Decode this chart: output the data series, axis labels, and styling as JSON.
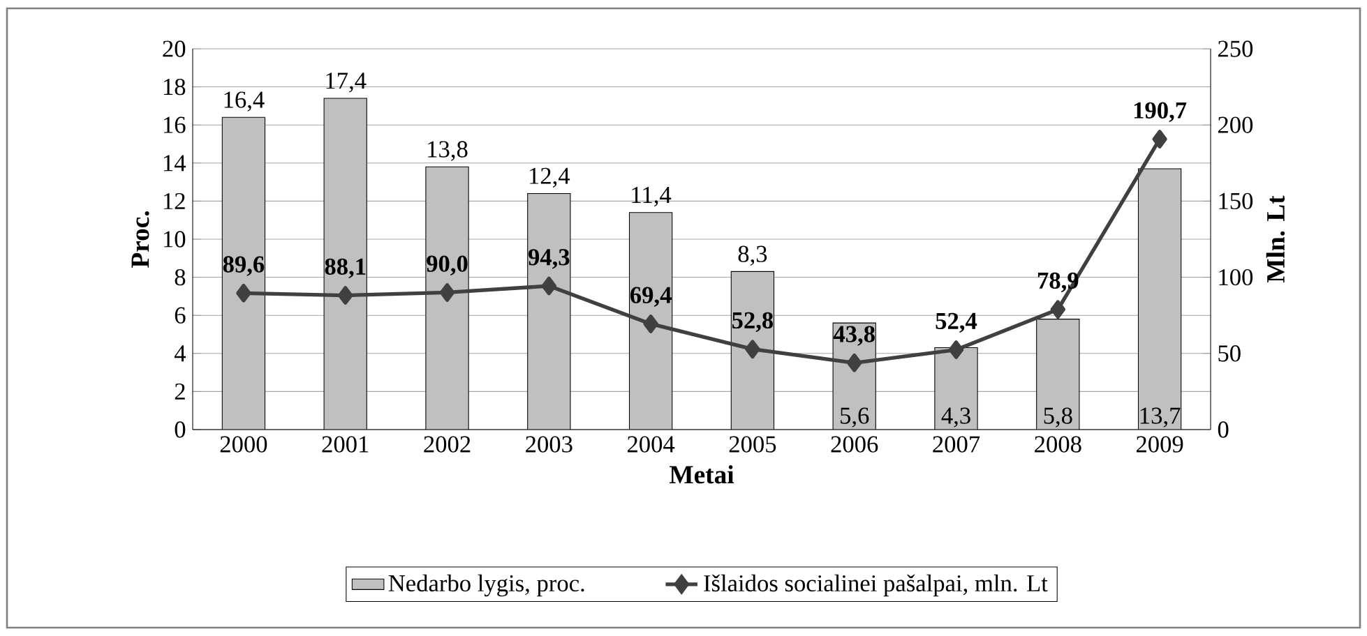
{
  "chart_data": {
    "type": "bar",
    "xlabel": "Metai",
    "ylabel": "Proc.",
    "y2label": "Mln. Lt",
    "categories": [
      "2000",
      "2001",
      "2002",
      "2003",
      "2004",
      "2005",
      "2006",
      "2007",
      "2008",
      "2009"
    ],
    "series": [
      {
        "name": "Nedarbo lygis, proc.",
        "color": "#c0c0c0",
        "values": [
          16.4,
          17.4,
          13.8,
          12.4,
          11.4,
          8.3,
          5.6,
          4.3,
          5.8,
          13.7
        ],
        "value_labels": [
          "16,4",
          "17,4",
          "13,8",
          "12,4",
          "11,4",
          "8,3",
          "5,6",
          "4,3",
          "5,8",
          "13,7"
        ]
      },
      {
        "name": "Išlaidos socialinei pašalpai, mln. Lt",
        "type": "line",
        "axis": "y2",
        "color": "#404040",
        "marker": "diamond",
        "values": [
          89.6,
          88.1,
          90.0,
          94.3,
          69.4,
          52.8,
          43.8,
          52.4,
          78.9,
          190.7
        ],
        "value_labels": [
          "89,6",
          "88,1",
          "90,0",
          "94,3",
          "69,4",
          "52,8",
          "43,8",
          "52,4",
          "78,9",
          "190,7"
        ]
      }
    ],
    "ylim": [
      0,
      20
    ],
    "yticks": [
      0,
      2,
      4,
      6,
      8,
      10,
      12,
      14,
      16,
      18,
      20
    ],
    "y2lim": [
      0,
      250
    ],
    "y2ticks": [
      0,
      50,
      100,
      150,
      200,
      250
    ],
    "grid": "y",
    "legend": "bottom"
  }
}
